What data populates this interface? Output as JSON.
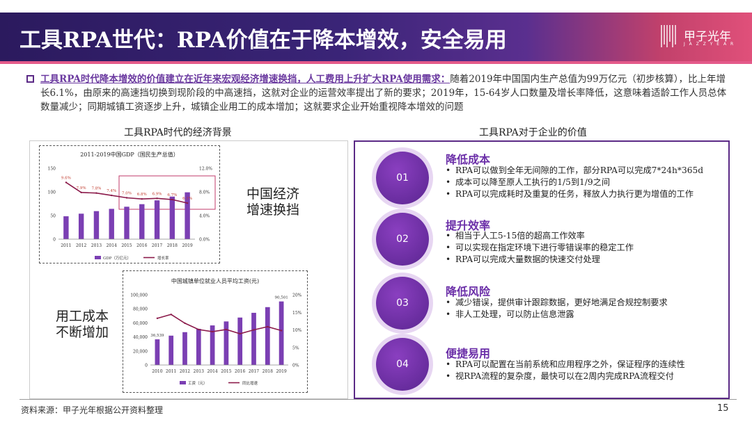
{
  "header": {
    "title": "工具RPA世代：RPA价值在于降本增效，安全易用",
    "logo_name": "甲子光年",
    "logo_sub": "J A Z Z Y E A R"
  },
  "intro": {
    "highlight": "工具RPA时代降本增效的价值建立在近年来宏观经济增速换挡，人工费用上升扩大RPA使用需求：",
    "body": "随着2019年中国国内生产总值为99万亿元（初步核算），比上年增长6.1%，由原来的高速挡切换到现阶段的中高速挡，这就对企业的运营效率提出了新的要求；2019年，15-64岁人口数量及增长率降低，这意味着适龄工作人员总体数量减少；同期城镇工资逐步上升，城镇企业用工的成本增加；这就要求企业开始重视降本增效的问题"
  },
  "left_section": {
    "title": "工具RPA时代的经济背景",
    "label1": [
      "中国经济",
      "增速换挡"
    ],
    "label2": [
      "用工成本",
      "不断增加"
    ]
  },
  "right_section": {
    "title": "工具RPA对于企业的价值",
    "items": [
      {
        "num": "01",
        "title": "降低成本",
        "bullets": [
          "RPA可以做到全年无间隙的工作，部分RPA可以完成7*24h*365d",
          "成本可以降至原人工执行的1/5到1/9之间",
          "RPA可以完成耗时及重复的任务，释放人力执行更为增值的工作"
        ]
      },
      {
        "num": "02",
        "title": "提升效率",
        "bullets": [
          "相当于人工5-15倍的超高工作效率",
          "可以实现在指定环境下进行零错误率的稳定工作",
          "RPA可以完成大量数据的快速交付处理"
        ]
      },
      {
        "num": "03",
        "title": "降低风险",
        "bullets": [
          "减少错误，提供审计跟踪数据，更好地满足合规控制要求",
          "非人工处理，可以防止信息泄露"
        ]
      },
      {
        "num": "04",
        "title": "便捷易用",
        "bullets": [
          "RPA可以配置在当前系统和应用程序之外，保证程序的连续性",
          "视RPA流程的复杂度，最快可以在2周内完成RPA流程交付"
        ]
      }
    ]
  },
  "footer": {
    "source": "资料来源：甲子光年根据公开资料整理",
    "page": "15"
  },
  "colors": {
    "bar": "#7b3fb3",
    "line": "#8b1a4a",
    "accent": "#5b2a86"
  },
  "chart_data": [
    {
      "type": "bar",
      "title": "2011-2019中国GDP（国民生产总值）",
      "categories": [
        "2011",
        "2012",
        "2013",
        "2014",
        "2015",
        "2016",
        "2017",
        "2018",
        "2019"
      ],
      "series": [
        {
          "name": "GDP（万亿元）",
          "type": "bar",
          "axis": "left",
          "values": [
            48.4,
            53.9,
            59.3,
            64.1,
            68.6,
            74.0,
            82.1,
            90.0,
            99.1
          ]
        },
        {
          "name": "增长率",
          "type": "line",
          "axis": "right",
          "values": [
            9.6,
            7.9,
            7.8,
            7.4,
            7.0,
            6.8,
            6.9,
            6.7,
            6.1
          ],
          "labels": [
            "9.6%",
            "7.9%",
            "7.8%",
            "7.4%",
            "7.0%",
            "6.8%",
            "6.9%",
            "6.7%",
            "6.1%"
          ]
        }
      ],
      "ylim_left": [
        0,
        150
      ],
      "yticks_left": [
        "0",
        "50",
        "100",
        "150"
      ],
      "ylim_right": [
        0,
        12
      ],
      "yticks_right": [
        "0.0%",
        "4.0%",
        "8.0%",
        "12.0%"
      ],
      "legend": [
        "GDP（万亿元）",
        "增长率"
      ]
    },
    {
      "type": "bar",
      "title": "中国城镇单位就业人员平均工资(元)",
      "categories": [
        "2010",
        "2011",
        "2012",
        "2013",
        "2014",
        "2015",
        "2016",
        "2017",
        "2018",
        "2019"
      ],
      "series": [
        {
          "name": "工资（元）",
          "type": "bar",
          "axis": "left",
          "values": [
            36539,
            41799,
            46769,
            51483,
            56360,
            62029,
            67569,
            74318,
            82413,
            90501
          ]
        },
        {
          "name": "同比增速",
          "type": "line",
          "axis": "right",
          "values": [
            13.3,
            14.4,
            11.9,
            10.1,
            9.5,
            10.1,
            8.9,
            10.0,
            10.9,
            9.8
          ]
        }
      ],
      "bar_labels": {
        "first": "36,539",
        "last": "90,501"
      },
      "ylim_left": [
        0,
        100000
      ],
      "yticks_left": [
        "0",
        "20,000",
        "40,000",
        "60,000",
        "80,000",
        "100,000"
      ],
      "ylim_right": [
        0,
        20
      ],
      "yticks_right": [
        "0%",
        "5%",
        "10%",
        "15%",
        "20%"
      ],
      "legend": [
        "工资（元）",
        "同比增速"
      ]
    }
  ]
}
